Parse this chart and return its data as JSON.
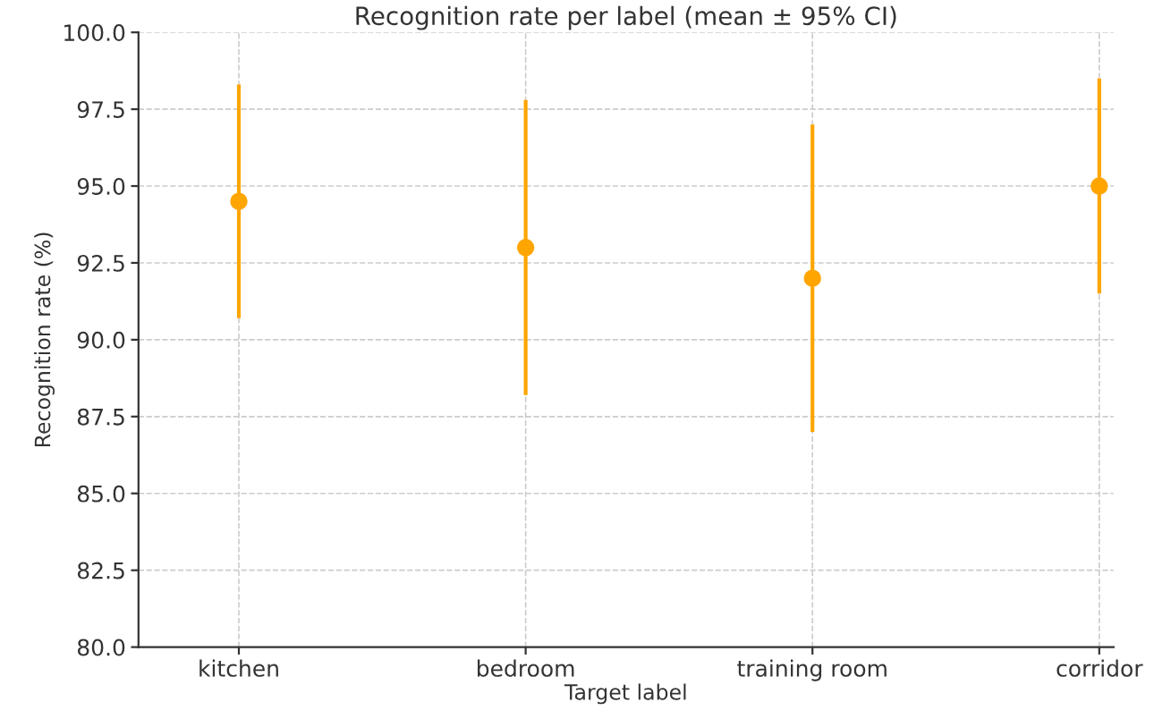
{
  "chart_data": {
    "type": "scatter",
    "title": "Recognition rate per label (mean ± 95% CI)",
    "xlabel": "Target label",
    "ylabel": "Recognition rate (%)",
    "categories": [
      "kitchen",
      "bedroom",
      "training room",
      "corridor"
    ],
    "values": [
      94.5,
      93.0,
      92.0,
      95.0
    ],
    "errors": [
      3.8,
      4.8,
      5.0,
      3.5
    ],
    "color": "#ffa500",
    "marker": "circle",
    "ylim": [
      80,
      100
    ],
    "yticks": [
      {
        "value": 80,
        "label": "80.0"
      },
      {
        "value": 82.5,
        "label": "82.5"
      },
      {
        "value": 85,
        "label": "85.0"
      },
      {
        "value": 87.5,
        "label": "87.5"
      },
      {
        "value": 90,
        "label": "90.0"
      },
      {
        "value": 92.5,
        "label": "92.5"
      },
      {
        "value": 95,
        "label": "95.0"
      },
      {
        "value": 97.5,
        "label": "97.5"
      },
      {
        "value": 100,
        "label": "100.0"
      }
    ],
    "grid": true
  }
}
